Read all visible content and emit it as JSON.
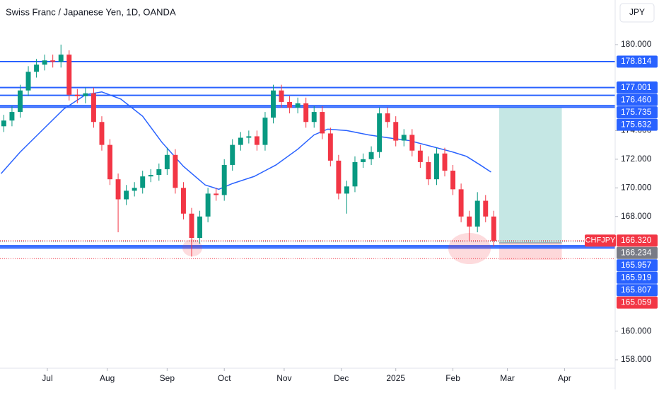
{
  "chart_data": {
    "type": "candlestick",
    "title": "Swiss Franc / Japanese Yen, 1D, OANDA",
    "currency": "JPY",
    "xlim": [
      -17.4,
      208.6
    ],
    "ylim": [
      157.41,
      183.115
    ],
    "xticks": [
      {
        "value": 0,
        "label": "Jul"
      },
      {
        "value": 22,
        "label": "Aug"
      },
      {
        "value": 44,
        "label": "Sep"
      },
      {
        "value": 65,
        "label": "Oct"
      },
      {
        "value": 87,
        "label": "Nov"
      },
      {
        "value": 108,
        "label": "Dec"
      },
      {
        "value": 128,
        "label": "2025"
      },
      {
        "value": 149,
        "label": "Feb"
      },
      {
        "value": 169,
        "label": "Mar"
      },
      {
        "value": 190,
        "label": "Apr"
      }
    ],
    "yticks": [
      {
        "value": 180,
        "label": "180.000"
      },
      {
        "value": 174,
        "label": "174.000"
      },
      {
        "value": 172,
        "label": "172.000"
      },
      {
        "value": 170,
        "label": "170.000"
      },
      {
        "value": 168,
        "label": "168.000"
      },
      {
        "value": 160,
        "label": "160.000"
      },
      {
        "value": 158,
        "label": "158.000"
      }
    ],
    "candles": {
      "up_color": "#089981",
      "down_color": "#f23645",
      "x": [
        -16,
        -13,
        -10,
        -7,
        -4,
        -1,
        2,
        5,
        8,
        11,
        14,
        17,
        20,
        23,
        26,
        29,
        32,
        35,
        38,
        41,
        44,
        47,
        50,
        53,
        56,
        59,
        62,
        65,
        68,
        71,
        74,
        77,
        80,
        83,
        86,
        89,
        92,
        95,
        98,
        101,
        104,
        107,
        110,
        113,
        116,
        119,
        122,
        125,
        128,
        131,
        134,
        137,
        140,
        143,
        146,
        149,
        152,
        155,
        158,
        161,
        164
      ],
      "open": [
        174.3,
        174.7,
        175.3,
        176.8,
        178.1,
        178.6,
        178.9,
        178.8,
        179.3,
        176.5,
        176.4,
        176.6,
        174.6,
        173.0,
        170.6,
        169.2,
        169.8,
        170.0,
        170.8,
        170.9,
        171.3,
        172.3,
        170.0,
        168.2,
        166.5,
        168.0,
        169.6,
        169.5,
        171.6,
        173.0,
        173.5,
        173.6,
        173.0,
        174.9,
        176.8,
        176.0,
        175.6,
        175.9,
        174.6,
        175.3,
        173.8,
        171.9,
        169.6,
        170.1,
        171.8,
        172.0,
        172.5,
        175.2,
        174.6,
        173.3,
        173.7,
        172.6,
        171.8,
        170.6,
        172.4,
        171.2,
        169.9,
        168.0,
        167.3,
        169.1,
        168.0
      ],
      "high": [
        175.1,
        175.7,
        177.2,
        178.5,
        179.0,
        179.3,
        179.3,
        180.0,
        179.6,
        176.9,
        177.0,
        177.0,
        175.0,
        173.4,
        171.0,
        170.2,
        170.4,
        171.2,
        171.3,
        171.7,
        172.8,
        172.7,
        170.4,
        168.6,
        168.4,
        170.0,
        170.0,
        172.0,
        173.4,
        173.9,
        174.0,
        174.0,
        175.3,
        177.2,
        177.2,
        176.4,
        176.3,
        176.3,
        175.7,
        175.7,
        174.2,
        172.3,
        170.5,
        172.2,
        172.4,
        172.9,
        175.6,
        175.6,
        175.0,
        174.1,
        174.1,
        173.0,
        172.2,
        172.8,
        172.8,
        171.6,
        170.3,
        168.4,
        169.7,
        169.5,
        168.4
      ],
      "low": [
        173.9,
        174.3,
        174.9,
        176.4,
        177.7,
        178.2,
        178.4,
        178.4,
        176.1,
        175.9,
        175.9,
        174.2,
        172.6,
        170.2,
        166.9,
        168.8,
        169.4,
        169.6,
        170.4,
        170.5,
        170.9,
        169.6,
        167.8,
        165.2,
        166.1,
        167.6,
        169.1,
        169.1,
        171.2,
        172.6,
        173.1,
        172.6,
        172.6,
        174.5,
        175.6,
        175.2,
        175.2,
        174.2,
        174.2,
        173.4,
        171.5,
        169.2,
        168.2,
        169.7,
        171.4,
        171.6,
        172.1,
        174.2,
        172.9,
        172.9,
        172.2,
        171.4,
        170.2,
        170.2,
        170.8,
        169.5,
        167.6,
        166.3,
        166.9,
        167.6,
        165.9
      ],
      "close": [
        174.7,
        175.3,
        176.8,
        178.1,
        178.6,
        178.9,
        178.8,
        179.3,
        176.5,
        176.4,
        176.6,
        174.6,
        173.0,
        170.6,
        169.2,
        169.8,
        170.0,
        170.8,
        170.9,
        171.3,
        172.3,
        170.0,
        168.2,
        166.5,
        168.0,
        169.6,
        169.5,
        171.6,
        173.0,
        173.5,
        173.6,
        173.0,
        174.9,
        176.8,
        176.0,
        175.6,
        175.9,
        174.6,
        175.3,
        173.8,
        171.9,
        169.6,
        170.1,
        171.8,
        172.0,
        172.5,
        175.2,
        174.6,
        173.3,
        173.7,
        172.6,
        171.8,
        170.6,
        172.4,
        171.2,
        169.9,
        168.0,
        167.3,
        169.1,
        168.0,
        166.3
      ]
    },
    "overlays": [
      {
        "color": "#2962ff",
        "x": [
          -17,
          -10,
          -2,
          6,
          14,
          20,
          27,
          35,
          42,
          50,
          58,
          63,
          68,
          76,
          84,
          92,
          98,
          103,
          110,
          118,
          125,
          133,
          141,
          149,
          154,
          159,
          163
        ],
        "values": [
          171.0,
          172.5,
          174.0,
          175.5,
          176.5,
          176.7,
          176.2,
          175.0,
          173.2,
          171.5,
          170.2,
          169.9,
          170.3,
          170.8,
          171.6,
          172.7,
          173.7,
          174.1,
          174.0,
          173.7,
          173.5,
          173.3,
          172.9,
          172.5,
          172.2,
          171.6,
          171.1
        ]
      }
    ],
    "position": {
      "x": [
        166,
        189
      ],
      "target": 175.6,
      "entry": 166.16,
      "stop": 164.97,
      "profit_color": "#b2dfdb",
      "loss_color": "#fccbcd"
    },
    "levels": [
      {
        "value": 178.814,
        "color": "#2962ff",
        "style": "solid"
      },
      {
        "value": 177.001,
        "color": "#2962ff",
        "style": "solid"
      },
      {
        "value": 176.46,
        "label": "176.460",
        "color": "#2962ff",
        "style": "solid"
      },
      {
        "value": 175.735,
        "color": "#2962ff",
        "style": "solid"
      },
      {
        "value": 175.632,
        "color": "#2962ff",
        "style": "solid"
      },
      {
        "value": 166.32,
        "label": "166.320",
        "symbol": "CHFJPY",
        "color": "#f23645",
        "style": "dotted"
      },
      {
        "value": 166.234,
        "color": "#787b86",
        "style": "dotted"
      },
      {
        "value": 165.957,
        "color": "#2962ff",
        "style": "solid"
      },
      {
        "value": 165.919,
        "color": "#2962ff",
        "style": "solid"
      },
      {
        "value": 165.807,
        "color": "#2962ff",
        "style": "solid"
      },
      {
        "value": 165.059,
        "color": "#f23645",
        "style": "dotted"
      }
    ]
  }
}
